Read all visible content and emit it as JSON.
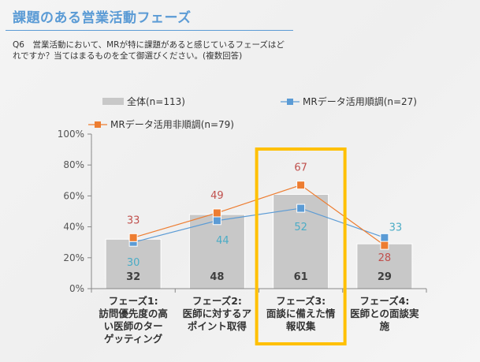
{
  "header": {
    "title": "課題のある営業活動フェーズ",
    "question": "Q6　営業活動において、MRが特に課題があると感じているフェーズはどれですか？当てはまるものを全て御選びください。(複数回答)"
  },
  "colors": {
    "bar": "#c8c8c8",
    "good": "#5b9bd5",
    "bad": "#ed7d31",
    "good_label": "#4bacc6",
    "bad_label": "#c0504d",
    "highlight": "#ffc000",
    "title": "#5b9bd5"
  },
  "chart_data": {
    "type": "bar+line",
    "categories": [
      [
        "フェーズ1:",
        "訪問優先度の高",
        "い医師のター",
        "ゲッティング"
      ],
      [
        "フェーズ2:",
        "医師に対するア",
        "ポイント取得"
      ],
      [
        "フェーズ3:",
        "面談に備えた情",
        "報収集"
      ],
      [
        "フェーズ4:",
        "医師との面談実",
        "施"
      ]
    ],
    "series": [
      {
        "name": "全体(n=113)",
        "type": "bar",
        "values": [
          32,
          48,
          61,
          29
        ]
      },
      {
        "name": "MRデータ活用順調(n=27)",
        "type": "line",
        "values": [
          30,
          44,
          52,
          33
        ]
      },
      {
        "name": "MRデータ活用非順調(n=79)",
        "type": "line",
        "values": [
          33,
          49,
          67,
          28
        ]
      }
    ],
    "ylim": [
      0,
      100
    ],
    "yticks": [
      "0%",
      "20%",
      "40%",
      "60%",
      "80%",
      "100%"
    ],
    "highlighted_category": "フェーズ3",
    "legend": "top"
  }
}
